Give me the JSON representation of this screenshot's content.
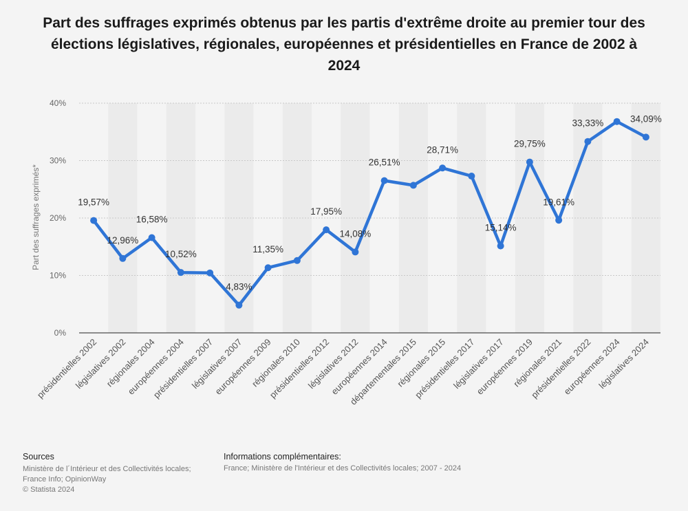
{
  "title": "Part des suffrages exprimés obtenus par les partis d'extrême droite au premier tour des élections législatives, régionales, européennes et présidentielles en France de 2002 à 2024",
  "footer": {
    "sources_title": "Sources",
    "sources_line1": "Ministère de l´Intérieur et des Collectivités locales;",
    "sources_line2": "France Info; OpinionWay",
    "copyright": "© Statista 2024",
    "info_title": "Informations complémentaires:",
    "info_text": "France; Ministère de l'Intérieur et des Collectivités locales; 2007 - 2024"
  },
  "chart_data": {
    "type": "line",
    "title": "Part des suffrages exprimés obtenus par les partis d'extrême droite au premier tour des élections législatives, régionales, européennes et présidentielles en France de 2002 à 2024",
    "ylabel": "Part des suffrages exprimés*",
    "xlabel": "",
    "ylim": [
      0,
      40
    ],
    "yticks": [
      "0%",
      "10%",
      "20%",
      "30%",
      "40%"
    ],
    "grid": true,
    "line_color": "#2f75d6",
    "categories": [
      "présidentielles 2002",
      "législatives 2002",
      "régionales 2004",
      "européennes 2004",
      "présidentielles 2007",
      "législatives 2007",
      "européennes 2009",
      "régionales 2010",
      "présidentielles 2012",
      "législatives 2012",
      "européennes 2014",
      "départementales 2015",
      "régionales 2015",
      "présidentielles 2017",
      "législatives 2017",
      "européennes 2019",
      "régionales 2021",
      "présidentielles 2022",
      "européennes 2024",
      "législatives 2024"
    ],
    "values": [
      19.57,
      12.96,
      16.58,
      10.52,
      10.44,
      4.83,
      11.35,
      12.6,
      17.95,
      14.08,
      26.51,
      25.7,
      28.71,
      27.3,
      15.14,
      29.75,
      19.61,
      33.33,
      36.8,
      34.09
    ],
    "labels": [
      "19,57%",
      "12,96%",
      "16,58%",
      "10,52%",
      "",
      "4,83%",
      "11,35%",
      "",
      "17,95%",
      "14,08%",
      "26,51%",
      "",
      "28,71%",
      "",
      "15,14%",
      "29,75%",
      "19,61%",
      "33,33%",
      "",
      "34,09%"
    ]
  }
}
